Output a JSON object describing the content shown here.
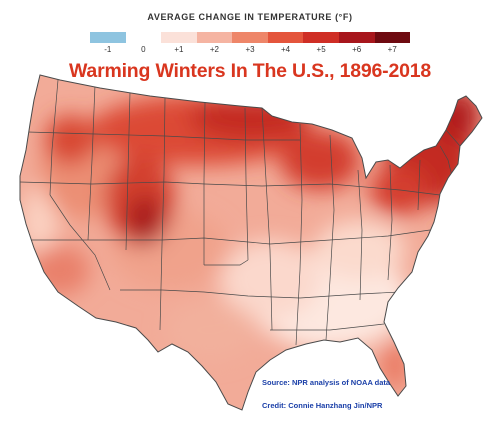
{
  "legend": {
    "title": "AVERAGE CHANGE IN TEMPERATURE (°F)",
    "ticks": [
      {
        "label": "-1",
        "value": -1
      },
      {
        "label": "0",
        "value": 0
      },
      {
        "label": "+1",
        "value": 1
      },
      {
        "label": "+2",
        "value": 2
      },
      {
        "label": "+3",
        "value": 3
      },
      {
        "label": "+4",
        "value": 4
      },
      {
        "label": "+5",
        "value": 5
      },
      {
        "label": "+6",
        "value": 6
      },
      {
        "label": "+7",
        "value": 7
      }
    ],
    "colors": [
      "#8ec4e0",
      "#ffffff",
      "#fbe1d9",
      "#f5b4a2",
      "#ee8669",
      "#e4553c",
      "#cf2e25",
      "#a7161c",
      "#6e0a10"
    ]
  },
  "title": "Warming Winters In The U.S., 1896-2018",
  "source": "Source: NPR analysis of NOAA data",
  "credit": "Credit: Connie Hanzhang Jin/NPR",
  "colors": {
    "title": "#d9361f",
    "note_text": "#1a3fa8",
    "border": "#4a4a4a"
  }
}
